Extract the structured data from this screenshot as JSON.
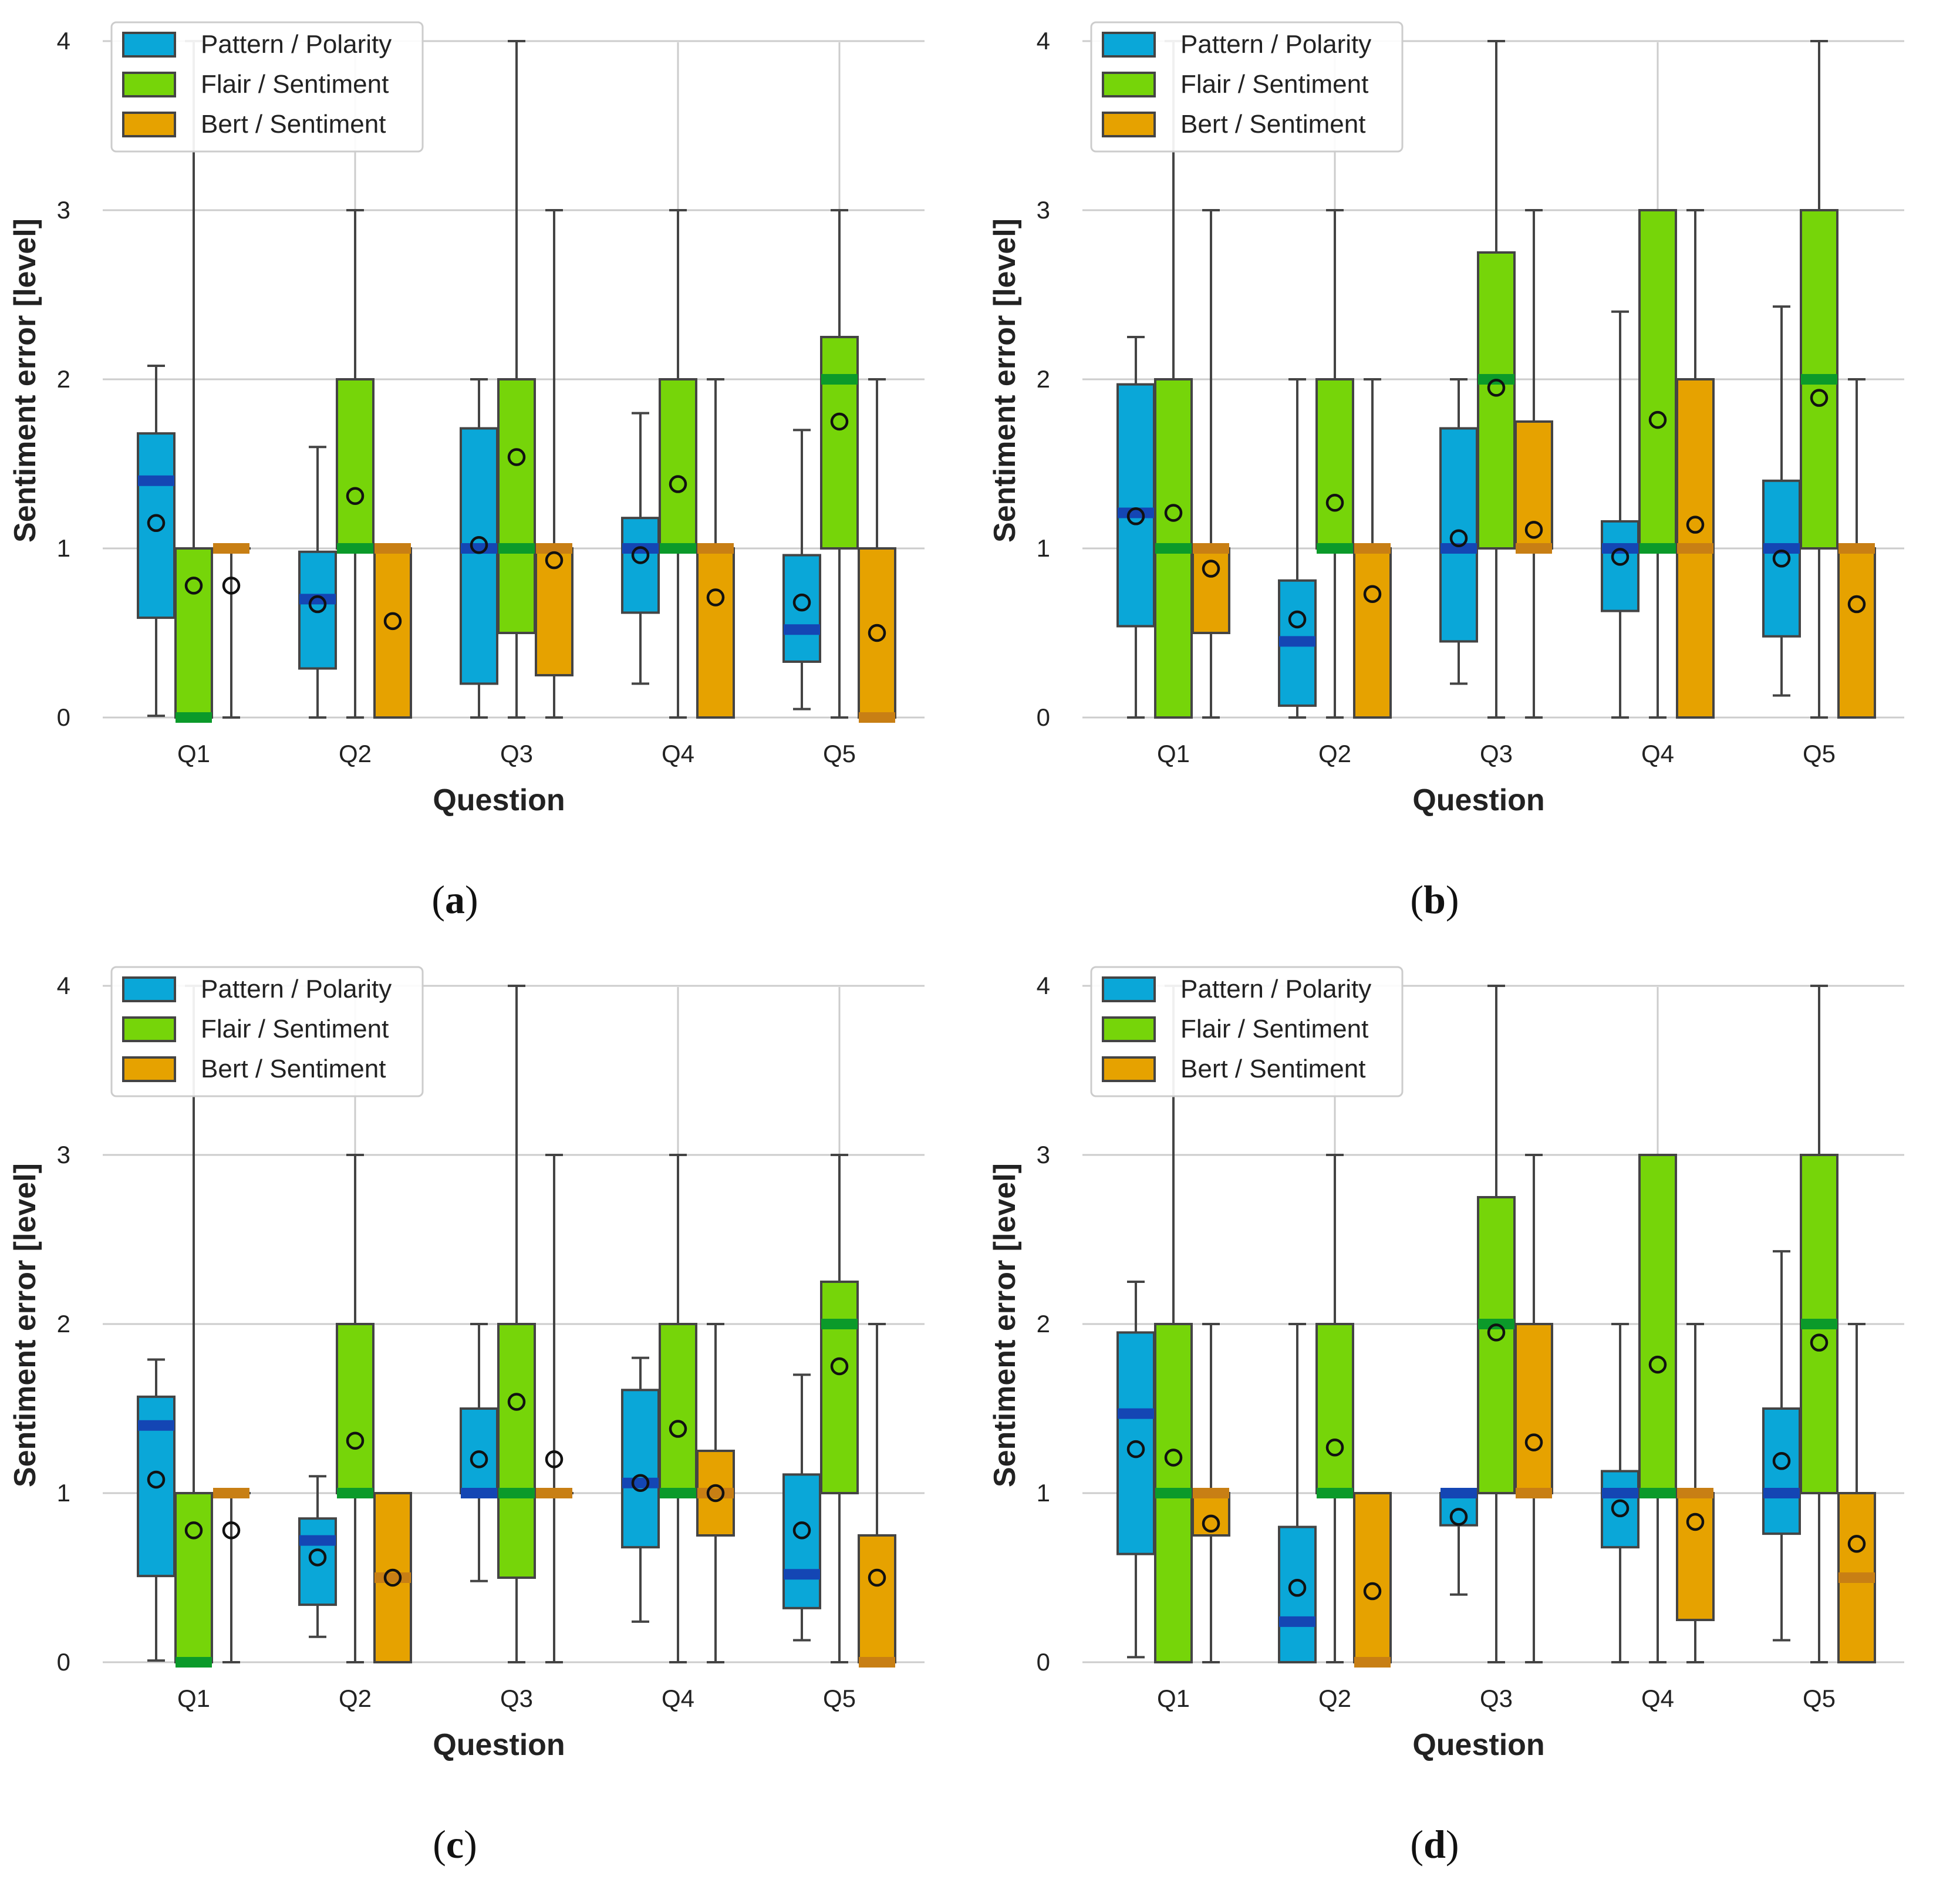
{
  "figure": {
    "legend": [
      {
        "label": "Pattern / Polarity",
        "color": "#0aa7d8"
      },
      {
        "label": "Flair / Sentiment",
        "color": "#76d509"
      },
      {
        "label": "Bert / Sentiment",
        "color": "#e6a200"
      }
    ],
    "median_colors": [
      "#1446b4",
      "#0b9a2a",
      "#c87f14"
    ],
    "edge_color": "#444444"
  },
  "chart_data": [
    {
      "type": "boxplot",
      "panel_label": "a",
      "xlabel": "Question",
      "ylabel": "Sentiment error [level]",
      "ylim": [
        0,
        4
      ],
      "yticks": [
        "0",
        "1",
        "2",
        "3",
        "4"
      ],
      "categories": [
        "Q1",
        "Q2",
        "Q3",
        "Q4",
        "Q5"
      ],
      "grid": true,
      "legend_position": "top-left",
      "series": [
        {
          "name": "Pattern / Polarity",
          "boxes": [
            {
              "whislo": 0.01,
              "q1": 0.59,
              "med": 1.4,
              "q3": 1.68,
              "whishi": 2.08,
              "mean": 1.15
            },
            {
              "whislo": 0.0,
              "q1": 0.29,
              "med": 0.7,
              "q3": 0.98,
              "whishi": 1.6,
              "mean": 0.67
            },
            {
              "whislo": 0.0,
              "q1": 0.2,
              "med": 1.0,
              "q3": 1.71,
              "whishi": 2.0,
              "mean": 1.02
            },
            {
              "whislo": 0.2,
              "q1": 0.62,
              "med": 1.0,
              "q3": 1.18,
              "whishi": 1.8,
              "mean": 0.96
            },
            {
              "whislo": 0.05,
              "q1": 0.33,
              "med": 0.52,
              "q3": 0.96,
              "whishi": 1.7,
              "mean": 0.68
            }
          ]
        },
        {
          "name": "Flair / Sentiment",
          "boxes": [
            {
              "whislo": 0.0,
              "q1": 0.0,
              "med": 0.0,
              "q3": 1.0,
              "whishi": 4.0,
              "mean": 0.78
            },
            {
              "whislo": 0.0,
              "q1": 1.0,
              "med": 1.0,
              "q3": 2.0,
              "whishi": 3.0,
              "mean": 1.31
            },
            {
              "whislo": 0.0,
              "q1": 0.5,
              "med": 1.0,
              "q3": 2.0,
              "whishi": 4.0,
              "mean": 1.54
            },
            {
              "whislo": 0.0,
              "q1": 1.0,
              "med": 1.0,
              "q3": 2.0,
              "whishi": 3.0,
              "mean": 1.38
            },
            {
              "whislo": 0.0,
              "q1": 1.0,
              "med": 2.0,
              "q3": 2.25,
              "whishi": 3.0,
              "mean": 1.75
            }
          ]
        },
        {
          "name": "Bert / Sentiment",
          "boxes": [
            {
              "whislo": 0.0,
              "q1": 1.0,
              "med": 1.0,
              "q3": 1.0,
              "whishi": 1.0,
              "mean": 0.78
            },
            {
              "whislo": 0.0,
              "q1": 0.0,
              "med": 1.0,
              "q3": 1.0,
              "whishi": 1.0,
              "mean": 0.57
            },
            {
              "whislo": 0.0,
              "q1": 0.25,
              "med": 1.0,
              "q3": 1.0,
              "whishi": 3.0,
              "mean": 0.93
            },
            {
              "whislo": 0.0,
              "q1": 0.0,
              "med": 1.0,
              "q3": 1.0,
              "whishi": 2.0,
              "mean": 0.71
            },
            {
              "whislo": 0.0,
              "q1": 0.0,
              "med": 0.0,
              "q3": 1.0,
              "whishi": 2.0,
              "mean": 0.5
            }
          ]
        }
      ]
    },
    {
      "type": "boxplot",
      "panel_label": "b",
      "xlabel": "Question",
      "ylabel": "Sentiment error [level]",
      "ylim": [
        0,
        4
      ],
      "yticks": [
        "0",
        "1",
        "2",
        "3",
        "4"
      ],
      "categories": [
        "Q1",
        "Q2",
        "Q3",
        "Q4",
        "Q5"
      ],
      "grid": true,
      "legend_position": "top-left",
      "series": [
        {
          "name": "Pattern / Polarity",
          "boxes": [
            {
              "whislo": 0.0,
              "q1": 0.54,
              "med": 1.21,
              "q3": 1.97,
              "whishi": 2.25,
              "mean": 1.19
            },
            {
              "whislo": 0.0,
              "q1": 0.07,
              "med": 0.45,
              "q3": 0.81,
              "whishi": 2.0,
              "mean": 0.58
            },
            {
              "whislo": 0.2,
              "q1": 0.45,
              "med": 1.0,
              "q3": 1.71,
              "whishi": 2.0,
              "mean": 1.06
            },
            {
              "whislo": 0.0,
              "q1": 0.63,
              "med": 1.0,
              "q3": 1.16,
              "whishi": 2.4,
              "mean": 0.95
            },
            {
              "whislo": 0.13,
              "q1": 0.48,
              "med": 1.0,
              "q3": 1.4,
              "whishi": 2.43,
              "mean": 0.94
            }
          ]
        },
        {
          "name": "Flair / Sentiment",
          "boxes": [
            {
              "whislo": 0.0,
              "q1": 0.0,
              "med": 1.0,
              "q3": 2.0,
              "whishi": 4.0,
              "mean": 1.21
            },
            {
              "whislo": 0.0,
              "q1": 1.0,
              "med": 1.0,
              "q3": 2.0,
              "whishi": 3.0,
              "mean": 1.27
            },
            {
              "whislo": 0.0,
              "q1": 1.0,
              "med": 2.0,
              "q3": 2.75,
              "whishi": 4.0,
              "mean": 1.95
            },
            {
              "whislo": 0.0,
              "q1": 1.0,
              "med": 1.0,
              "q3": 3.0,
              "whishi": 3.0,
              "mean": 1.76
            },
            {
              "whislo": 0.0,
              "q1": 1.0,
              "med": 2.0,
              "q3": 3.0,
              "whishi": 4.0,
              "mean": 1.89
            }
          ]
        },
        {
          "name": "Bert / Sentiment",
          "boxes": [
            {
              "whislo": 0.0,
              "q1": 0.5,
              "med": 1.0,
              "q3": 1.0,
              "whishi": 3.0,
              "mean": 0.88
            },
            {
              "whislo": 0.0,
              "q1": 0.0,
              "med": 1.0,
              "q3": 1.0,
              "whishi": 2.0,
              "mean": 0.73
            },
            {
              "whislo": 0.0,
              "q1": 1.0,
              "med": 1.0,
              "q3": 1.75,
              "whishi": 3.0,
              "mean": 1.11
            },
            {
              "whislo": 0.0,
              "q1": 0.0,
              "med": 1.0,
              "q3": 2.0,
              "whishi": 3.0,
              "mean": 1.14
            },
            {
              "whislo": 0.0,
              "q1": 0.0,
              "med": 1.0,
              "q3": 1.0,
              "whishi": 2.0,
              "mean": 0.67
            }
          ]
        }
      ]
    },
    {
      "type": "boxplot",
      "panel_label": "c",
      "xlabel": "Question",
      "ylabel": "Sentiment error [level]",
      "ylim": [
        0,
        4
      ],
      "yticks": [
        "0",
        "1",
        "2",
        "3",
        "4"
      ],
      "categories": [
        "Q1",
        "Q2",
        "Q3",
        "Q4",
        "Q5"
      ],
      "grid": true,
      "legend_position": "top-left",
      "series": [
        {
          "name": "Pattern / Polarity",
          "boxes": [
            {
              "whislo": 0.01,
              "q1": 0.51,
              "med": 1.4,
              "q3": 1.57,
              "whishi": 1.79,
              "mean": 1.08
            },
            {
              "whislo": 0.15,
              "q1": 0.34,
              "med": 0.72,
              "q3": 0.85,
              "whishi": 1.1,
              "mean": 0.62
            },
            {
              "whislo": 0.48,
              "q1": 1.0,
              "med": 1.0,
              "q3": 1.5,
              "whishi": 2.0,
              "mean": 1.2
            },
            {
              "whislo": 0.24,
              "q1": 0.68,
              "med": 1.06,
              "q3": 1.61,
              "whishi": 1.8,
              "mean": 1.06
            },
            {
              "whislo": 0.13,
              "q1": 0.32,
              "med": 0.52,
              "q3": 1.11,
              "whishi": 1.7,
              "mean": 0.78
            }
          ]
        },
        {
          "name": "Flair / Sentiment",
          "boxes": [
            {
              "whislo": 0.0,
              "q1": 0.0,
              "med": 0.0,
              "q3": 1.0,
              "whishi": 4.0,
              "mean": 0.78
            },
            {
              "whislo": 0.0,
              "q1": 1.0,
              "med": 1.0,
              "q3": 2.0,
              "whishi": 3.0,
              "mean": 1.31
            },
            {
              "whislo": 0.0,
              "q1": 0.5,
              "med": 1.0,
              "q3": 2.0,
              "whishi": 4.0,
              "mean": 1.54
            },
            {
              "whislo": 0.0,
              "q1": 1.0,
              "med": 1.0,
              "q3": 2.0,
              "whishi": 3.0,
              "mean": 1.38
            },
            {
              "whislo": 0.0,
              "q1": 1.0,
              "med": 2.0,
              "q3": 2.25,
              "whishi": 3.0,
              "mean": 1.75
            }
          ]
        },
        {
          "name": "Bert / Sentiment",
          "boxes": [
            {
              "whislo": 0.0,
              "q1": 1.0,
              "med": 1.0,
              "q3": 1.0,
              "whishi": 1.0,
              "mean": 0.78
            },
            {
              "whislo": 0.0,
              "q1": 0.0,
              "med": 0.5,
              "q3": 1.0,
              "whishi": 1.0,
              "mean": 0.5
            },
            {
              "whislo": 0.0,
              "q1": 1.0,
              "med": 1.0,
              "q3": 1.0,
              "whishi": 3.0,
              "mean": 1.2
            },
            {
              "whislo": 0.0,
              "q1": 0.75,
              "med": 1.0,
              "q3": 1.25,
              "whishi": 2.0,
              "mean": 1.0
            },
            {
              "whislo": 0.0,
              "q1": 0.0,
              "med": 0.0,
              "q3": 0.75,
              "whishi": 2.0,
              "mean": 0.5
            }
          ]
        }
      ]
    },
    {
      "type": "boxplot",
      "panel_label": "d",
      "xlabel": "Question",
      "ylabel": "Sentiment error [level]",
      "ylim": [
        0,
        4
      ],
      "yticks": [
        "0",
        "1",
        "2",
        "3",
        "4"
      ],
      "categories": [
        "Q1",
        "Q2",
        "Q3",
        "Q4",
        "Q5"
      ],
      "grid": true,
      "legend_position": "top-left",
      "series": [
        {
          "name": "Pattern / Polarity",
          "boxes": [
            {
              "whislo": 0.03,
              "q1": 0.64,
              "med": 1.47,
              "q3": 1.95,
              "whishi": 2.25,
              "mean": 1.26
            },
            {
              "whislo": 0.0,
              "q1": 0.0,
              "med": 0.24,
              "q3": 0.8,
              "whishi": 2.0,
              "mean": 0.44
            },
            {
              "whislo": 0.4,
              "q1": 0.81,
              "med": 1.0,
              "q3": 1.0,
              "whishi": 1.0,
              "mean": 0.86
            },
            {
              "whislo": 0.0,
              "q1": 0.68,
              "med": 1.0,
              "q3": 1.13,
              "whishi": 2.0,
              "mean": 0.91
            },
            {
              "whislo": 0.13,
              "q1": 0.76,
              "med": 1.0,
              "q3": 1.5,
              "whishi": 2.43,
              "mean": 1.19
            }
          ]
        },
        {
          "name": "Flair / Sentiment",
          "boxes": [
            {
              "whislo": 0.0,
              "q1": 0.0,
              "med": 1.0,
              "q3": 2.0,
              "whishi": 4.0,
              "mean": 1.21
            },
            {
              "whislo": 0.0,
              "q1": 1.0,
              "med": 1.0,
              "q3": 2.0,
              "whishi": 3.0,
              "mean": 1.27
            },
            {
              "whislo": 0.0,
              "q1": 1.0,
              "med": 2.0,
              "q3": 2.75,
              "whishi": 4.0,
              "mean": 1.95
            },
            {
              "whislo": 0.0,
              "q1": 1.0,
              "med": 1.0,
              "q3": 3.0,
              "whishi": 3.0,
              "mean": 1.76
            },
            {
              "whislo": 0.0,
              "q1": 1.0,
              "med": 2.0,
              "q3": 3.0,
              "whishi": 4.0,
              "mean": 1.89
            }
          ]
        },
        {
          "name": "Bert / Sentiment",
          "boxes": [
            {
              "whislo": 0.0,
              "q1": 0.75,
              "med": 1.0,
              "q3": 1.0,
              "whishi": 2.0,
              "mean": 0.82
            },
            {
              "whislo": 0.0,
              "q1": 0.0,
              "med": 0.0,
              "q3": 1.0,
              "whishi": 1.0,
              "mean": 0.42
            },
            {
              "whislo": 0.0,
              "q1": 1.0,
              "med": 1.0,
              "q3": 2.0,
              "whishi": 3.0,
              "mean": 1.3
            },
            {
              "whislo": 0.0,
              "q1": 0.25,
              "med": 1.0,
              "q3": 1.0,
              "whishi": 2.0,
              "mean": 0.83
            },
            {
              "whislo": 0.0,
              "q1": 0.0,
              "med": 0.5,
              "q3": 1.0,
              "whishi": 2.0,
              "mean": 0.7
            }
          ]
        }
      ]
    }
  ]
}
